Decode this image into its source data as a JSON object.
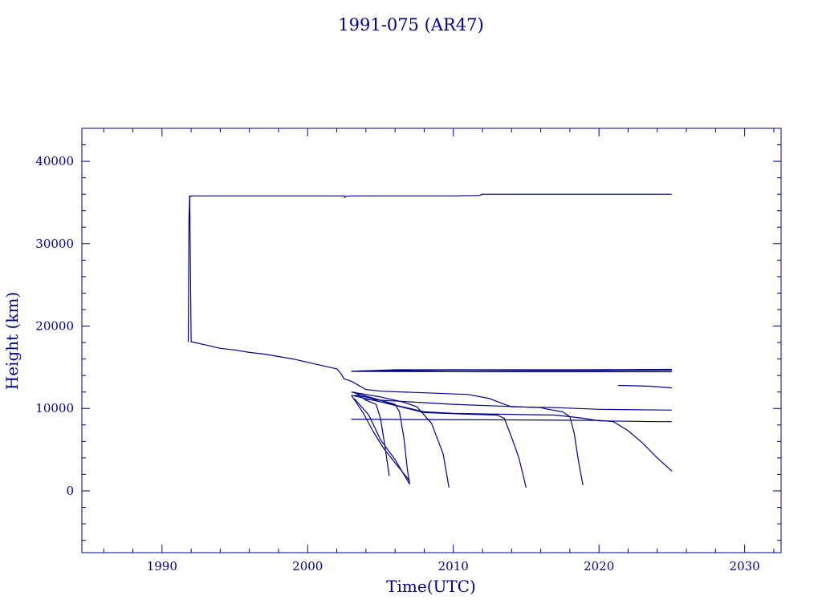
{
  "chart_data": {
    "type": "line",
    "title": "1991-075 (AR47)",
    "xlabel": "Time(UTC)",
    "ylabel": "Height (km)",
    "xlim": [
      1984.5,
      2032.5
    ],
    "ylim": [
      -7500,
      44000
    ],
    "x_ticks": [
      1990,
      2000,
      2010,
      2020,
      2030
    ],
    "x_tick_labels": [
      "1990",
      "2000",
      "2010",
      "2020",
      "2030"
    ],
    "y_ticks": [
      0,
      10000,
      20000,
      30000,
      40000
    ],
    "y_tick_labels": [
      "0",
      "10000",
      "20000",
      "30000",
      "40000"
    ],
    "x_minor_step": 2,
    "y_minor_step": 2000,
    "grid": false,
    "line_color": "#00008b",
    "series": [
      {
        "x": [
          1991.8,
          1991.85,
          1991.9,
          1991.95,
          1992.0,
          1992.3,
          1995.0,
          1998.0,
          2001.0,
          2002.5,
          2002.55,
          2002.6,
          2003.0,
          2006.0,
          2010.0,
          2011.8,
          2012.0,
          2025.0
        ],
        "y": [
          18100,
          33000,
          35800,
          35700,
          35800,
          35800,
          35800,
          35800,
          35800,
          35800,
          35600,
          35750,
          35800,
          35800,
          35800,
          35850,
          36000,
          36000
        ]
      },
      {
        "x": [
          1991.9,
          1992.0,
          1993.0,
          1994.0,
          1995.0,
          1996.0,
          1997.0,
          1998.0,
          1999.0,
          2000.0,
          2001.0,
          2002.0,
          2002.3,
          2002.5,
          2003.0
        ],
        "y": [
          35800,
          18100,
          17700,
          17300,
          17100,
          16800,
          16600,
          16300,
          16000,
          15600,
          15200,
          14800,
          14200,
          13600,
          13300
        ]
      },
      {
        "x": [
          2003.0,
          2004.0,
          2005.0,
          2008.0,
          2011.0,
          2012.5,
          2013.5,
          2014.0,
          2017.0,
          2020.0,
          2025.0
        ],
        "y": [
          13300,
          12300,
          12100,
          11900,
          11700,
          11200,
          10500,
          10200,
          10100,
          9900,
          9800
        ]
      },
      {
        "x": [
          2003.2,
          2004.0,
          2005.0,
          2006.0,
          2007.0,
          2008.0,
          2010.0,
          2013.0,
          2017.0,
          2018.0,
          2019.0,
          2020.0,
          2022.0,
          2024.0,
          2025.0
        ],
        "y": [
          11600,
          11400,
          11000,
          10400,
          10000,
          9600,
          9400,
          9300,
          9200,
          9000,
          8800,
          8500,
          8450,
          8400,
          8400
        ]
      },
      {
        "x": [
          2004.0,
          2007.0,
          2010.0,
          2013.0,
          2016.0,
          2016.5,
          2017.5,
          2018.0,
          2018.3,
          2018.6,
          2018.9
        ],
        "y": [
          11100,
          10800,
          10500,
          10300,
          10100,
          9900,
          9600,
          9000,
          7000,
          3500,
          700
        ]
      },
      {
        "x": [
          2003.0,
          2005.0,
          2008.0,
          2011.0,
          2013.0,
          2013.5,
          2014.0,
          2014.5,
          2015.0
        ],
        "y": [
          11600,
          10800,
          9500,
          9300,
          9200,
          8800,
          6500,
          4000,
          400
        ]
      },
      {
        "x": [
          2003.0,
          2005.0,
          2006.5,
          2007.5,
          2008.5,
          2009.3,
          2009.7
        ],
        "y": [
          12000,
          11400,
          10800,
          10200,
          8200,
          4500,
          400
        ]
      },
      {
        "x": [
          2003.0,
          2005.0,
          2006.0,
          2006.3,
          2006.6,
          2006.85,
          2007.0
        ],
        "y": [
          12000,
          11000,
          10500,
          9600,
          6500,
          2500,
          800
        ]
      },
      {
        "x": [
          2003.2,
          2004.0,
          2004.7,
          2005.0,
          2005.3,
          2005.6
        ],
        "y": [
          12000,
          11000,
          10500,
          8800,
          5500,
          1800
        ]
      },
      {
        "x": [
          2003.0,
          2003.8,
          2004.5,
          2005.2,
          2006.0,
          2007.0
        ],
        "y": [
          11600,
          9500,
          7200,
          5200,
          3400,
          1200
        ]
      },
      {
        "x": [
          2003.2,
          2004.2,
          2005.0,
          2006.0,
          2007.0
        ],
        "y": [
          11200,
          9200,
          6200,
          3800,
          800
        ]
      },
      {
        "x": [
          2003.0,
          2008.0,
          2015.0,
          2020.0,
          2021.0,
          2022.0,
          2023.0,
          2024.0,
          2025.0
        ],
        "y": [
          8700,
          8650,
          8600,
          8550,
          8400,
          7300,
          5800,
          4000,
          2400
        ]
      },
      {
        "x": [
          2003.0,
          2006.0,
          2010.0,
          2015.0,
          2020.0,
          2025.0
        ],
        "y": [
          14500,
          14700,
          14700,
          14700,
          14700,
          14700
        ]
      },
      {
        "x": [
          2003.5,
          2010.0,
          2015.0,
          2020.0,
          2025.0
        ],
        "y": [
          14550,
          14650,
          14600,
          14600,
          14650
        ]
      },
      {
        "x": [
          2005.0,
          2010.0,
          2015.0,
          2020.0,
          2025.0
        ],
        "y": [
          14600,
          14700,
          14650,
          14700,
          14750
        ]
      },
      {
        "x": [
          2003.0,
          2012.0,
          2018.0,
          2025.0
        ],
        "y": [
          14500,
          14450,
          14450,
          14450
        ]
      },
      {
        "x": [
          2021.3,
          2022.5,
          2023.5,
          2025.0
        ],
        "y": [
          12800,
          12750,
          12700,
          12500
        ]
      }
    ]
  }
}
